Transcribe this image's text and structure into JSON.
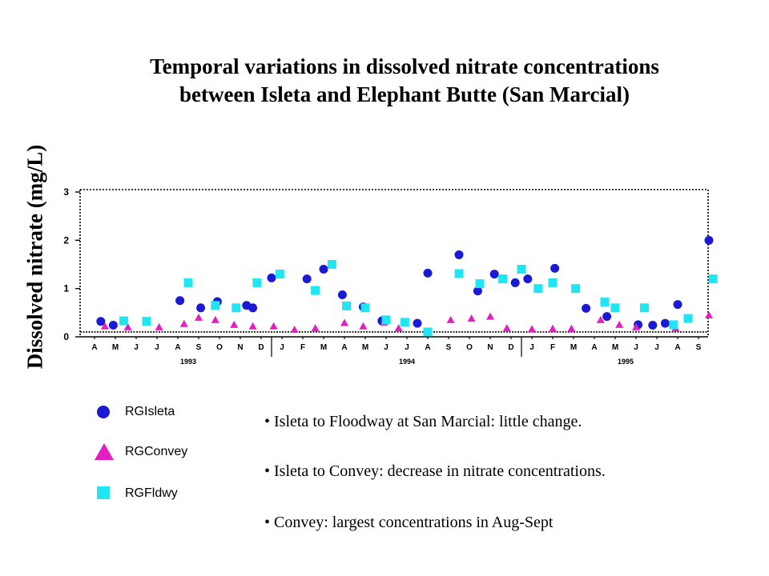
{
  "title_lines": [
    "Temporal variations in dissolved nitrate concentrations",
    "between Isleta and Elephant Butte (San Marcial)"
  ],
  "notes": [
    "• Isleta to Floodway at San Marcial: little change.",
    "• Isleta to Convey: decrease in nitrate concentrations.",
    "• Convey: largest concentrations in Aug-Sept"
  ],
  "legend": [
    {
      "label": "RGIsleta",
      "shape": "circle",
      "color": "#1a1ad6"
    },
    {
      "label": "RGConvey",
      "shape": "triangle",
      "color": "#e31ec3"
    },
    {
      "label": "RGFldwy",
      "shape": "square",
      "color": "#1fe6f2"
    }
  ],
  "chart_data": {
    "type": "scatter",
    "ylabel": "Dissolved nitrate (mg/L)",
    "y_ticks": [
      "0",
      "1",
      "2",
      "3"
    ],
    "ylim": [
      0,
      3.05
    ],
    "reference_line_y": 0.1,
    "month_labels": [
      "A",
      "M",
      "J",
      "J",
      "A",
      "S",
      "O",
      "N",
      "D",
      "J",
      "F",
      "M",
      "A",
      "M",
      "J",
      "J",
      "A",
      "S",
      "O",
      "N",
      "D",
      "J",
      "F",
      "M",
      "A",
      "M",
      "J",
      "J",
      "A",
      "S"
    ],
    "year_labels": [
      {
        "label": "1993",
        "at": 4.5
      },
      {
        "label": "1994",
        "at": 15
      },
      {
        "label": "1995",
        "at": 25.5
      }
    ],
    "year_dividers": [
      9,
      21
    ],
    "series": [
      {
        "name": "RGIsleta",
        "shape": "circle",
        "color": "#1a1ad6",
        "points": [
          [
            0.3,
            0.32
          ],
          [
            0.9,
            0.24
          ],
          [
            4.1,
            0.75
          ],
          [
            5.1,
            0.6
          ],
          [
            5.9,
            0.73
          ],
          [
            7.3,
            0.65
          ],
          [
            7.6,
            0.6
          ],
          [
            8.5,
            1.22
          ],
          [
            10.2,
            1.2
          ],
          [
            11.0,
            1.4
          ],
          [
            11.9,
            0.87
          ],
          [
            12.9,
            0.62
          ],
          [
            13.8,
            0.33
          ],
          [
            15.5,
            0.28
          ],
          [
            16.0,
            1.32
          ],
          [
            17.5,
            1.7
          ],
          [
            18.4,
            0.95
          ],
          [
            19.2,
            1.3
          ],
          [
            20.2,
            1.12
          ],
          [
            20.8,
            1.2
          ],
          [
            22.1,
            1.42
          ],
          [
            23.6,
            0.59
          ],
          [
            24.6,
            0.42
          ],
          [
            26.1,
            0.25
          ],
          [
            26.8,
            0.24
          ],
          [
            27.4,
            0.28
          ],
          [
            28.0,
            0.67
          ],
          [
            29.5,
            2.0
          ]
        ]
      },
      {
        "name": "RGConvey",
        "shape": "triangle",
        "color": "#e31ec3",
        "points": [
          [
            0.5,
            0.22
          ],
          [
            1.6,
            0.2
          ],
          [
            3.1,
            0.2
          ],
          [
            4.3,
            0.27
          ],
          [
            5.0,
            0.4
          ],
          [
            5.8,
            0.35
          ],
          [
            6.7,
            0.25
          ],
          [
            7.6,
            0.22
          ],
          [
            8.6,
            0.22
          ],
          [
            9.6,
            0.15
          ],
          [
            10.6,
            0.18
          ],
          [
            12.0,
            0.29
          ],
          [
            12.9,
            0.22
          ],
          [
            13.9,
            0.3
          ],
          [
            14.6,
            0.18
          ],
          [
            17.1,
            0.35
          ],
          [
            18.1,
            0.38
          ],
          [
            19.0,
            0.42
          ],
          [
            19.8,
            0.18
          ],
          [
            21.0,
            0.16
          ],
          [
            22.0,
            0.17
          ],
          [
            22.9,
            0.17
          ],
          [
            24.3,
            0.35
          ],
          [
            25.2,
            0.25
          ],
          [
            26.0,
            0.2
          ],
          [
            27.9,
            0.18
          ],
          [
            29.5,
            0.45
          ]
        ]
      },
      {
        "name": "RGFldwy",
        "shape": "square",
        "color": "#1fe6f2",
        "points": [
          [
            1.4,
            0.33
          ],
          [
            2.5,
            0.32
          ],
          [
            4.5,
            1.12
          ],
          [
            5.8,
            0.65
          ],
          [
            6.8,
            0.6
          ],
          [
            7.8,
            1.12
          ],
          [
            8.9,
            1.3
          ],
          [
            10.6,
            0.96
          ],
          [
            11.4,
            1.5
          ],
          [
            12.1,
            0.64
          ],
          [
            13.0,
            0.6
          ],
          [
            14.0,
            0.35
          ],
          [
            14.9,
            0.3
          ],
          [
            16.0,
            0.1
          ],
          [
            17.5,
            1.31
          ],
          [
            18.5,
            1.1
          ],
          [
            19.6,
            1.2
          ],
          [
            20.5,
            1.4
          ],
          [
            21.3,
            1.0
          ],
          [
            22.0,
            1.12
          ],
          [
            23.1,
            1.0
          ],
          [
            24.5,
            0.72
          ],
          [
            25.0,
            0.6
          ],
          [
            26.4,
            0.6
          ],
          [
            27.8,
            0.25
          ],
          [
            28.5,
            0.38
          ],
          [
            29.7,
            1.2
          ]
        ]
      }
    ]
  }
}
